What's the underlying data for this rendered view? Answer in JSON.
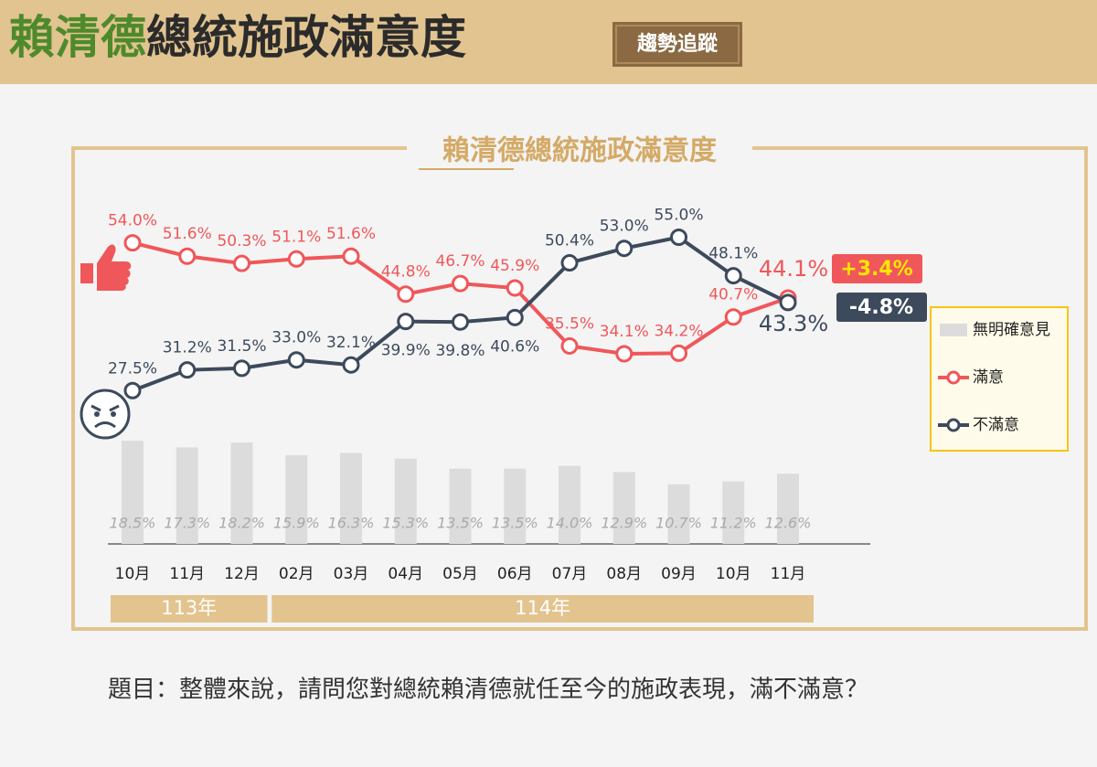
{
  "header": {
    "title_highlight": "賴清德",
    "title_rest": "總統施政滿意度",
    "badge": "趨勢追蹤"
  },
  "chart_data": {
    "type": "line",
    "title": "賴清德總統施政滿意度",
    "categories": [
      "10月",
      "11月",
      "12月",
      "02月",
      "03月",
      "04月",
      "05月",
      "06月",
      "07月",
      "08月",
      "09月",
      "10月",
      "11月"
    ],
    "x_groups": [
      {
        "label": "113年",
        "categories": [
          "10月",
          "11月",
          "12月"
        ]
      },
      {
        "label": "114年",
        "categories": [
          "02月",
          "03月",
          "04月",
          "05月",
          "06月",
          "07月",
          "08月",
          "09月",
          "10月",
          "11月"
        ]
      }
    ],
    "ylim": [
      0,
      60
    ],
    "series": [
      {
        "name": "滿意",
        "type": "line",
        "color": "#f0575a",
        "values": [
          54.0,
          51.6,
          50.3,
          51.1,
          51.6,
          44.8,
          46.7,
          45.9,
          35.5,
          34.1,
          34.2,
          40.7,
          44.1
        ],
        "value_labels": [
          "54.0%",
          "51.6%",
          "50.3%",
          "51.1%",
          "51.6%",
          "44.8%",
          "46.7%",
          "45.9%",
          "35.5%",
          "34.1%",
          "34.2%",
          "40.7%",
          "44.1%"
        ]
      },
      {
        "name": "不滿意",
        "type": "line",
        "color": "#3d4a5c",
        "values": [
          27.5,
          31.2,
          31.5,
          33.0,
          32.1,
          39.9,
          39.8,
          40.6,
          50.4,
          53.0,
          55.0,
          48.1,
          43.3
        ],
        "value_labels": [
          "27.5%",
          "31.2%",
          "31.5%",
          "33.0%",
          "32.1%",
          "39.9%",
          "39.8%",
          "40.6%",
          "50.4%",
          "53.0%",
          "55.0%",
          "48.1%",
          "43.3%"
        ]
      },
      {
        "name": "無明確意見",
        "type": "bar",
        "color": "#dcdcdc",
        "values": [
          18.5,
          17.3,
          18.2,
          15.9,
          16.3,
          15.3,
          13.5,
          13.5,
          14.0,
          12.9,
          10.7,
          11.2,
          12.6
        ],
        "value_labels": [
          "18.5%",
          "17.3%",
          "18.2%",
          "15.9%",
          "16.3%",
          "15.3%",
          "13.5%",
          "13.5%",
          "14.0%",
          "12.9%",
          "10.7%",
          "11.2%",
          "12.6%"
        ]
      }
    ],
    "changes": [
      {
        "value": 3.4,
        "label": "+3.4%",
        "color": "#f0575a"
      },
      {
        "value": -4.8,
        "label": "-4.8%",
        "color": "#3d4a5c"
      }
    ]
  },
  "footer": {
    "question": "題目：整體來說，請問您對總統賴清德就任至今的施政表現，滿不滿意？"
  }
}
